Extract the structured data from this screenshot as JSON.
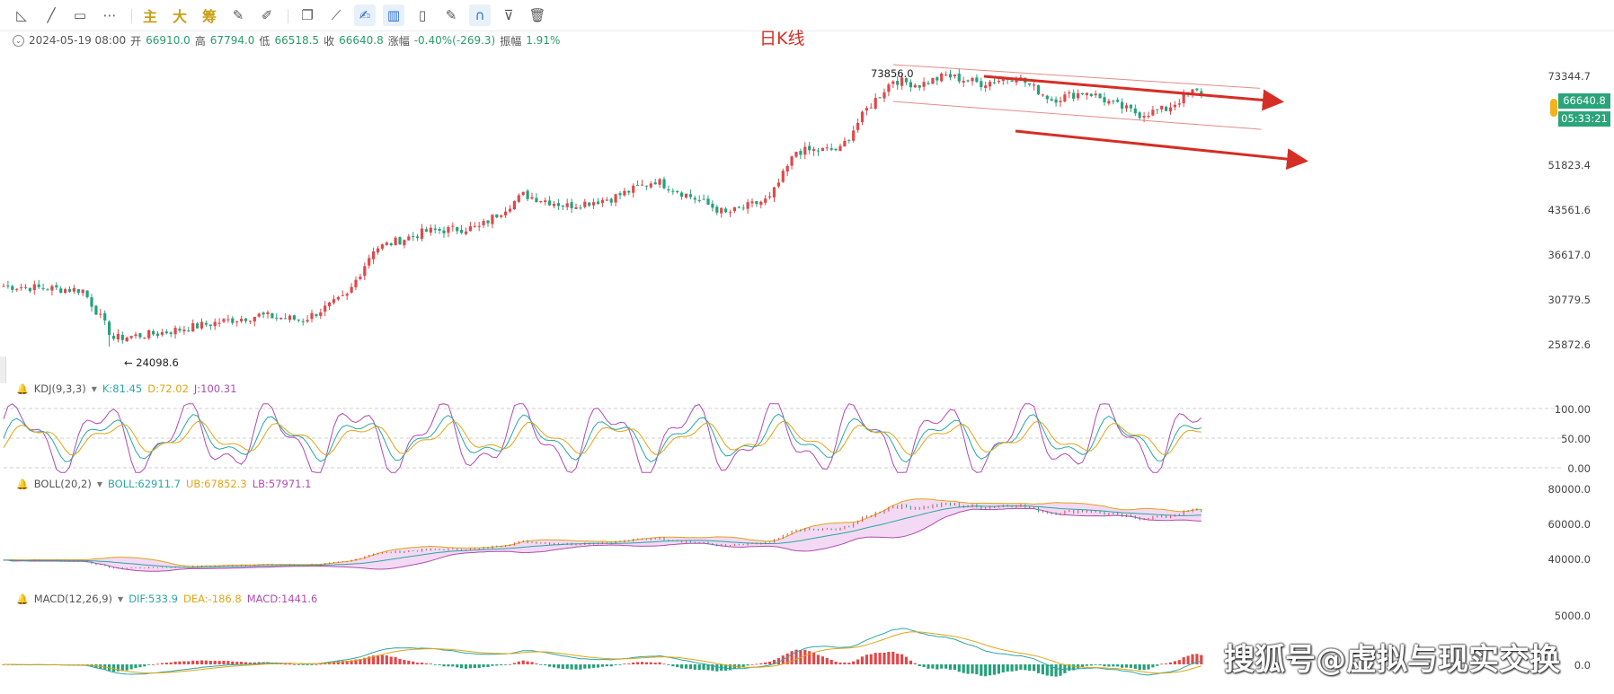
{
  "toolbar": {
    "tools": [
      {
        "name": "trendline-tool",
        "icon": "diagonal-line-icon",
        "glyph": "◺"
      },
      {
        "name": "line-tool",
        "icon": "line-icon",
        "glyph": "╱"
      },
      {
        "name": "rectangle-tool",
        "icon": "rectangle-icon",
        "glyph": "▭"
      },
      {
        "name": "more-tool",
        "icon": "more-icon",
        "glyph": "⋯"
      },
      {
        "name": "main-force-button",
        "label": "主"
      },
      {
        "name": "big-order-button",
        "label": "大"
      },
      {
        "name": "chip-button",
        "label": "筹"
      },
      {
        "name": "edit-tool",
        "icon": "pen-edit-icon",
        "glyph": "✎"
      },
      {
        "name": "brush-tool",
        "icon": "brush-icon",
        "glyph": "✐"
      },
      {
        "name": "copy-tool",
        "icon": "copy-icon",
        "glyph": "❐"
      },
      {
        "name": "ruler-tool",
        "icon": "ruler-icon",
        "glyph": "⟋"
      },
      {
        "name": "draw-tool",
        "icon": "draw-icon",
        "glyph": "✍"
      },
      {
        "name": "candle-tool",
        "icon": "candlestick-icon",
        "glyph": "▥"
      },
      {
        "name": "delete-small-tool",
        "icon": "trash-small-icon",
        "glyph": "▯"
      },
      {
        "name": "note-tool",
        "icon": "note-edit-icon",
        "glyph": "✎"
      },
      {
        "name": "magnet-tool",
        "icon": "magnet-icon",
        "glyph": "∩"
      },
      {
        "name": "filter-tool",
        "icon": "filter-icon",
        "glyph": "⊽"
      },
      {
        "name": "trash-tool",
        "icon": "trash-icon",
        "glyph": "🗑"
      }
    ]
  },
  "info": {
    "date": "2024-05-19 08:00",
    "open_label": "开",
    "open": "66910.0",
    "high_label": "高",
    "high": "67794.0",
    "low_label": "低",
    "low": "66518.5",
    "close_label": "收",
    "close": "66640.8",
    "change_label": "涨幅",
    "change": "-0.40%(-269.3)",
    "amplitude_label": "振幅",
    "amplitude": "1.91%"
  },
  "chart_title": "日K线",
  "annotations": {
    "high_mark": "73856.0",
    "low_mark": "24098.6"
  },
  "price_axis": [
    "73344.7",
    "51823.4",
    "43561.6",
    "36617.0",
    "30779.5",
    "25872.6"
  ],
  "current_price": "66640.8",
  "countdown": "05:33:21",
  "kdj": {
    "name": "KDJ(9,3,3)",
    "k": "K:81.45",
    "d": "D:72.02",
    "j": "J:100.31",
    "ticks": [
      "100.00",
      "50.00",
      "0.00"
    ]
  },
  "boll": {
    "name": "BOLL(20,2)",
    "boll": "BOLL:62911.7",
    "ub": "UB:67852.3",
    "lb": "LB:57971.1",
    "ticks": [
      "80000.0",
      "60000.0",
      "40000.0"
    ]
  },
  "macd": {
    "name": "MACD(12,26,9)",
    "dif": "DIF:533.9",
    "dea": "DEA:-186.8",
    "macd": "MACD:1441.6",
    "ticks": [
      "5000.0",
      "0.0"
    ]
  },
  "watermark": "搜狐号@虚拟与现实交换",
  "colors": {
    "up": "#e0484a",
    "down": "#26a17b",
    "arrow": "#d62d24",
    "k": "#2aa6a6",
    "d": "#e0a516",
    "j": "#b04bb1"
  },
  "chart_data": {
    "type": "candlestick",
    "title": "日K线",
    "ylim": [
      23000,
      76000
    ],
    "yscale": "log",
    "close_path": [
      [
        0,
        30700
      ],
      [
        18,
        30200
      ],
      [
        25,
        24900
      ],
      [
        35,
        25400
      ],
      [
        48,
        26500
      ],
      [
        58,
        27300
      ],
      [
        68,
        26800
      ],
      [
        78,
        29500
      ],
      [
        84,
        35600
      ],
      [
        96,
        38200
      ],
      [
        108,
        38800
      ],
      [
        118,
        44200
      ],
      [
        128,
        42300
      ],
      [
        138,
        43600
      ],
      [
        148,
        46800
      ],
      [
        158,
        43200
      ],
      [
        164,
        41000
      ],
      [
        174,
        43500
      ],
      [
        180,
        52600
      ],
      [
        190,
        53000
      ],
      [
        196,
        62200
      ],
      [
        202,
        70000
      ],
      [
        208,
        68600
      ],
      [
        214,
        71200
      ],
      [
        222,
        69000
      ],
      [
        230,
        70900
      ],
      [
        238,
        64700
      ],
      [
        246,
        66800
      ],
      [
        252,
        63500
      ],
      [
        258,
        61000
      ],
      [
        264,
        62300
      ],
      [
        270,
        66700
      ]
    ],
    "channel": {
      "upper": [
        [
          202,
          73856
        ],
        [
          300,
          66700
        ]
      ],
      "lower": [
        [
          202,
          64200
        ],
        [
          305,
          55800
        ]
      ]
    }
  }
}
